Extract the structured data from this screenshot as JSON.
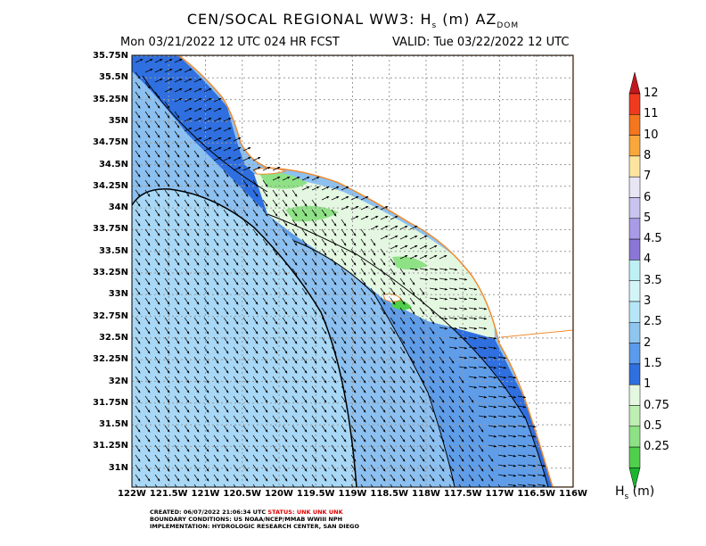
{
  "header": {
    "title_main": "CEN/SOCAL REGIONAL WW3: H",
    "title_sub": "s",
    "title_rest": " (m) AZ",
    "title_dom": "DOM",
    "forecast_line": "Mon 03/21/2022 12 UTC 024 HR FCST",
    "valid_line": "VALID: Tue 03/22/2022 12 UTC"
  },
  "axes": {
    "lat_labels": [
      "35.75N",
      "35.5N",
      "35.25N",
      "35N",
      "34.75N",
      "34.5N",
      "34.25N",
      "34N",
      "33.75N",
      "33.5N",
      "33.25N",
      "33N",
      "32.75N",
      "32.5N",
      "32.25N",
      "32N",
      "31.75N",
      "31.5N",
      "31.25N",
      "31N"
    ],
    "lon_labels": [
      "122W",
      "121.5W",
      "121W",
      "120.5W",
      "120W",
      "119.5W",
      "119W",
      "118.5W",
      "118W",
      "117.5W",
      "117W",
      "116.5W",
      "116W"
    ]
  },
  "colorbar": {
    "levels": [
      "12",
      "11",
      "10",
      "8",
      "7",
      "6",
      "5",
      "4.5",
      "4",
      "3.5",
      "3",
      "2.5",
      "2",
      "1.5",
      "1",
      "0.75",
      "0.5",
      "0.25"
    ],
    "colors": [
      "#ef3a1e",
      "#f5761e",
      "#f9a63a",
      "#fde5a0",
      "#e8e5f5",
      "#c9c3ef",
      "#a99be6",
      "#8b76d8",
      "#bff0f6",
      "#d4f5f8",
      "#b6e6f7",
      "#8fc6f0",
      "#5b9bec",
      "#2f6fdf",
      "#e4f7e1",
      "#bdeeb2",
      "#8ee285",
      "#4fcf4b"
    ],
    "top_cap": "#c1181e",
    "bottom_cap": "#1ab52e",
    "unit_main": "H",
    "unit_sub": "s",
    "unit_rest": " (m)"
  },
  "footer": {
    "created": "CREATED: 06/07/2022 21:06:34 UTC",
    "status": "STATUS: UNK UNK UNK",
    "boundary": "BOUNDARY CONDITIONS: US NOAA/NCEP/MMAB WWIII NPH",
    "implementation": "IMPLEMENTATION: HYDROLOGIC RESEARCH CENTER, SAN DIEGO"
  },
  "map_colors": {
    "land": "#ffffff",
    "coastline": "#f08a30",
    "grid": "#a0a0a0",
    "band_outer": "#a8d8f6",
    "band_mid": "#8cc0f0",
    "band_inner": "#5f9de9",
    "band_coast": "#2f6fdf",
    "band_light": "#e4f7e1",
    "band_green": "#8ee285"
  }
}
